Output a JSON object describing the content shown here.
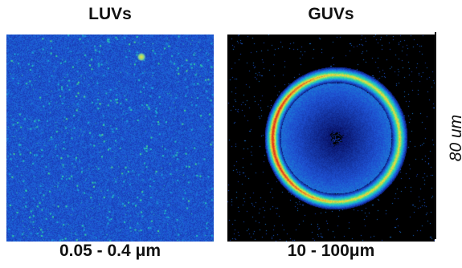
{
  "figure": {
    "left_panel": {
      "title": "LUVs",
      "caption": "0.05 - 0.4 μm"
    },
    "right_panel": {
      "title": "GUVs",
      "caption": "10 - 100μm"
    },
    "scale_bar": {
      "label": "80 um"
    }
  },
  "colors": {
    "luv_background": "#1a3fa3",
    "guv_background": "#000000",
    "colormap": [
      "#0a1a7a",
      "#1f4fd0",
      "#18a9d8",
      "#2fd6a0",
      "#e8e23a",
      "#e03a1a"
    ]
  }
}
